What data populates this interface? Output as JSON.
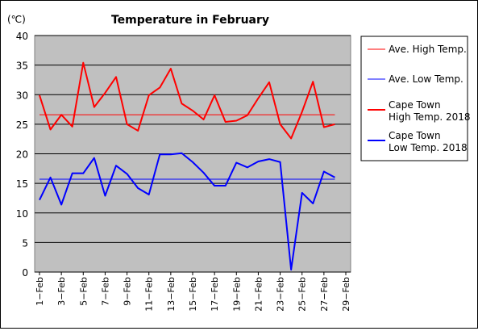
{
  "chart_data": {
    "type": "line",
    "title": "Temperature in February",
    "unit_label": "(℃)",
    "ylim": [
      0,
      40
    ],
    "yticks": [
      0,
      5,
      10,
      15,
      20,
      25,
      30,
      35,
      40
    ],
    "grid": true,
    "legend_position": "right",
    "days": [
      1,
      2,
      3,
      4,
      5,
      6,
      7,
      8,
      9,
      10,
      11,
      12,
      13,
      14,
      15,
      16,
      17,
      18,
      19,
      20,
      21,
      22,
      23,
      24,
      25,
      26,
      27,
      28
    ],
    "xtick_labels": [
      "1−Feb",
      "3−Feb",
      "5−Feb",
      "7−Feb",
      "9−Feb",
      "11−Feb",
      "13−Feb",
      "15−Feb",
      "17−Feb",
      "19−Feb",
      "21−Feb",
      "23−Feb",
      "25−Feb",
      "27−Feb",
      "29−Feb"
    ],
    "xtick_days": [
      1,
      3,
      5,
      7,
      9,
      11,
      13,
      15,
      17,
      19,
      21,
      23,
      25,
      27,
      29
    ],
    "avg_high": 26.6,
    "avg_low": 15.7,
    "series": [
      {
        "name": "Ave. High Temp.",
        "color": "#ff0000",
        "style": "thin",
        "key": "avg_high"
      },
      {
        "name": "Ave. Low Temp.",
        "color": "#0000ff",
        "style": "thin",
        "key": "avg_low"
      },
      {
        "name": "Cape Town\nHigh Temp. 2018",
        "color": "#ff0000",
        "style": "thick",
        "values": [
          29.9,
          24.1,
          26.6,
          24.6,
          35.4,
          27.9,
          30.3,
          33.0,
          25.0,
          23.9,
          29.9,
          31.2,
          34.4,
          28.5,
          27.3,
          25.8,
          29.9,
          25.4,
          25.6,
          26.5,
          29.4,
          32.1,
          25.0,
          22.6,
          27.1,
          32.2,
          24.5,
          25.0
        ]
      },
      {
        "name": "Cape Town\nLow Temp. 2018",
        "color": "#0000ff",
        "style": "thick",
        "values": [
          12.2,
          16.0,
          11.4,
          16.7,
          16.7,
          19.3,
          12.9,
          18.0,
          16.6,
          14.2,
          13.1,
          19.9,
          19.9,
          20.1,
          18.6,
          16.8,
          14.6,
          14.6,
          18.5,
          17.7,
          18.7,
          19.1,
          18.6,
          0.4,
          13.4,
          11.6,
          17.0,
          16.0
        ]
      }
    ]
  }
}
